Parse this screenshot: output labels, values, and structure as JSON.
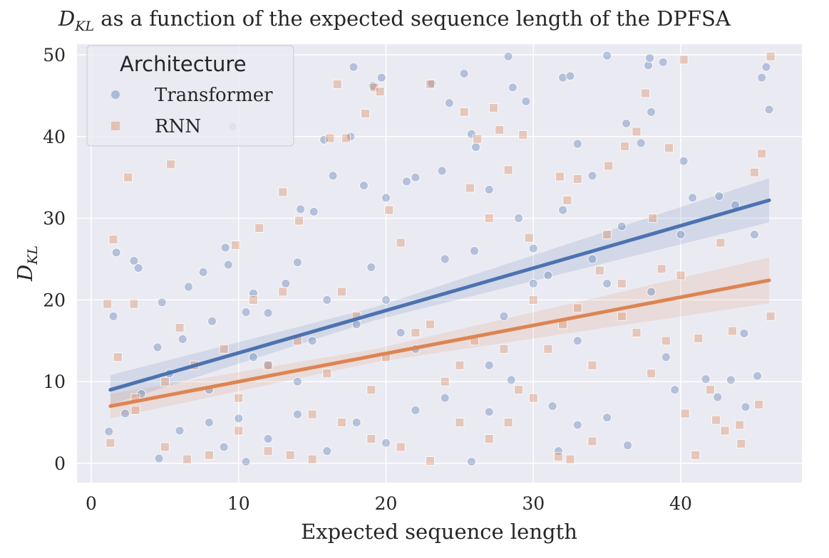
{
  "chart_data": {
    "type": "scatter",
    "title_prefix": "D",
    "title_sub": "KL",
    "title_rest": " as a function of the expected sequence length of the DPFSA",
    "xlabel": "Expected sequence length",
    "ylabel_main": "D",
    "ylabel_sub": "KL",
    "xlim": [
      -1,
      48
    ],
    "ylim": [
      -2.3,
      51.3
    ],
    "xticks": [
      "0",
      "10",
      "20",
      "30",
      "40"
    ],
    "yticks": [
      "0",
      "10",
      "20",
      "30",
      "40",
      "50"
    ],
    "grid": true,
    "legend": {
      "title": "Architecture",
      "placement": "top-left"
    },
    "series": [
      {
        "name": "Transformer",
        "marker": "circle",
        "color": "#4c72b0",
        "regression": {
          "x0": 1.3,
          "y0": 9.0,
          "x1": 46.0,
          "y1": 32.2,
          "ci_start": 1.8,
          "ci_mid": 0.8,
          "ci_end": 2.7
        },
        "points": [
          [
            1.5,
            18
          ],
          [
            1.7,
            25.8
          ],
          [
            2.9,
            24.8
          ],
          [
            3.2,
            23.9
          ],
          [
            3.4,
            8.5
          ],
          [
            4.5,
            14.2
          ],
          [
            4.8,
            19.7
          ],
          [
            5.3,
            11
          ],
          [
            6.2,
            15.2
          ],
          [
            6.6,
            21.6
          ],
          [
            7.6,
            23.4
          ],
          [
            8.2,
            17.4
          ],
          [
            9.1,
            26.4
          ],
          [
            9.3,
            24.3
          ],
          [
            9.6,
            41.2
          ],
          [
            10.5,
            18.5
          ],
          [
            11,
            20.8
          ],
          [
            12,
            18.4
          ],
          [
            13.2,
            22
          ],
          [
            14,
            24.6
          ],
          [
            14.2,
            31.1
          ],
          [
            15.1,
            30.8
          ],
          [
            15.8,
            39.6
          ],
          [
            16.4,
            35.2
          ],
          [
            17.6,
            40
          ],
          [
            17.8,
            48.5
          ],
          [
            18.5,
            34
          ],
          [
            19.1,
            46.2
          ],
          [
            19.7,
            47.2
          ],
          [
            20,
            32.5
          ],
          [
            21.4,
            34.5
          ],
          [
            22,
            35
          ],
          [
            23.1,
            46.5
          ],
          [
            23.8,
            35.8
          ],
          [
            24.3,
            44.1
          ],
          [
            25.3,
            47.7
          ],
          [
            25.8,
            40.3
          ],
          [
            26.1,
            38.7
          ],
          [
            27,
            33.5
          ],
          [
            28.3,
            49.8
          ],
          [
            28.6,
            46
          ],
          [
            29.5,
            44.3
          ],
          [
            30,
            26.3
          ],
          [
            31,
            23
          ],
          [
            32,
            47.2
          ],
          [
            32.5,
            47.4
          ],
          [
            33,
            39.1
          ],
          [
            34,
            35.2
          ],
          [
            35,
            49.9
          ],
          [
            36.3,
            41.6
          ],
          [
            37.3,
            39.2
          ],
          [
            37.8,
            48.7
          ],
          [
            37.9,
            49.6
          ],
          [
            38,
            43
          ],
          [
            38.8,
            49.1
          ],
          [
            40.2,
            37
          ],
          [
            40.8,
            32.5
          ],
          [
            41.7,
            10.3
          ],
          [
            42.6,
            32.7
          ],
          [
            43.4,
            10.2
          ],
          [
            43.7,
            31.6
          ],
          [
            44.3,
            15.9
          ],
          [
            45,
            28
          ],
          [
            45.5,
            47.2
          ],
          [
            45.8,
            48.5
          ],
          [
            46,
            43.3
          ],
          [
            1.2,
            3.9
          ],
          [
            2.3,
            6.1
          ],
          [
            4.6,
            0.6
          ],
          [
            6,
            4
          ],
          [
            8,
            5
          ],
          [
            9,
            2
          ],
          [
            10,
            5.5
          ],
          [
            10.5,
            0.2
          ],
          [
            12,
            3
          ],
          [
            14,
            6
          ],
          [
            16,
            1.5
          ],
          [
            18,
            5
          ],
          [
            20,
            2.5
          ],
          [
            22,
            6.5
          ],
          [
            24,
            8
          ],
          [
            25.8,
            0.2
          ],
          [
            27,
            6.3
          ],
          [
            28.5,
            10.2
          ],
          [
            31.3,
            7
          ],
          [
            31.7,
            1.5
          ],
          [
            33,
            4.7
          ],
          [
            35,
            5.6
          ],
          [
            36.4,
            2.2
          ],
          [
            39.6,
            9
          ],
          [
            42.5,
            8.1
          ],
          [
            44.4,
            6.9
          ],
          [
            45.2,
            10.7
          ],
          [
            12,
            12
          ],
          [
            15,
            15
          ],
          [
            18,
            17
          ],
          [
            20,
            20
          ],
          [
            22,
            14
          ],
          [
            26,
            26
          ],
          [
            28,
            18
          ],
          [
            30,
            22
          ],
          [
            32,
            31
          ],
          [
            34,
            25
          ],
          [
            36,
            29
          ],
          [
            38,
            21
          ],
          [
            40,
            28
          ],
          [
            8,
            9
          ],
          [
            11,
            13
          ],
          [
            14,
            10
          ],
          [
            16,
            20
          ],
          [
            19,
            24
          ],
          [
            21,
            16
          ],
          [
            24,
            25
          ],
          [
            27,
            12
          ],
          [
            29,
            30
          ],
          [
            33,
            15
          ],
          [
            35,
            22
          ],
          [
            39,
            13
          ]
        ]
      },
      {
        "name": "RNN",
        "marker": "square",
        "color": "#dd8452",
        "regression": {
          "x0": 1.3,
          "y0": 7.0,
          "x1": 46.0,
          "y1": 22.4,
          "ci_start": 1.5,
          "ci_mid": 0.8,
          "ci_end": 2.8
        },
        "points": [
          [
            1.1,
            19.5
          ],
          [
            1.5,
            27.4
          ],
          [
            1.8,
            13
          ],
          [
            2.5,
            35
          ],
          [
            2.9,
            19.5
          ],
          [
            5.4,
            36.6
          ],
          [
            6,
            16.6
          ],
          [
            9.8,
            26.7
          ],
          [
            11.4,
            28.8
          ],
          [
            13,
            33.2
          ],
          [
            14.1,
            29.7
          ],
          [
            16.2,
            39.8
          ],
          [
            16.7,
            46.4
          ],
          [
            17.3,
            39.8
          ],
          [
            18.6,
            42.8
          ],
          [
            19.2,
            46
          ],
          [
            19.6,
            45.5
          ],
          [
            20.2,
            31
          ],
          [
            23,
            46.4
          ],
          [
            25.3,
            43
          ],
          [
            25.7,
            33.7
          ],
          [
            26.2,
            39.7
          ],
          [
            27.3,
            43.5
          ],
          [
            27.7,
            40.8
          ],
          [
            28.3,
            35.9
          ],
          [
            29.3,
            40.2
          ],
          [
            29.7,
            27.6
          ],
          [
            31.8,
            35.1
          ],
          [
            32.3,
            32.2
          ],
          [
            33,
            34.8
          ],
          [
            35.1,
            36.4
          ],
          [
            36.2,
            38.8
          ],
          [
            37,
            40.6
          ],
          [
            37.6,
            45.3
          ],
          [
            38.1,
            30
          ],
          [
            39.2,
            38.6
          ],
          [
            40.2,
            49.4
          ],
          [
            41.2,
            15.3
          ],
          [
            42.7,
            27
          ],
          [
            43.5,
            16.2
          ],
          [
            45,
            35.6
          ],
          [
            45.5,
            37.9
          ],
          [
            46.1,
            49.8
          ],
          [
            46.1,
            18
          ],
          [
            45.3,
            7.2
          ],
          [
            44.1,
            2.4
          ],
          [
            42.4,
            5.3
          ],
          [
            41,
            1
          ],
          [
            40.3,
            6.1
          ],
          [
            38.7,
            23.8
          ],
          [
            36,
            18
          ],
          [
            34.5,
            23.6
          ],
          [
            34,
            2.7
          ],
          [
            32.5,
            0.5
          ],
          [
            31.7,
            0.8
          ],
          [
            30,
            8
          ],
          [
            28.3,
            5
          ],
          [
            27,
            3
          ],
          [
            25,
            5
          ],
          [
            23,
            0.3
          ],
          [
            21,
            2
          ],
          [
            19,
            3
          ],
          [
            17,
            5
          ],
          [
            15,
            0.5
          ],
          [
            13.5,
            1
          ],
          [
            12,
            1.5
          ],
          [
            10,
            4
          ],
          [
            8,
            1
          ],
          [
            6.5,
            0.5
          ],
          [
            5,
            2
          ],
          [
            3,
            6.5
          ],
          [
            1.3,
            2.5
          ],
          [
            3,
            8
          ],
          [
            5,
            10
          ],
          [
            7,
            12
          ],
          [
            9,
            14
          ],
          [
            10,
            8
          ],
          [
            12,
            12
          ],
          [
            14,
            15
          ],
          [
            16,
            11
          ],
          [
            18,
            18
          ],
          [
            20,
            13
          ],
          [
            22,
            16
          ],
          [
            24,
            10
          ],
          [
            26,
            15
          ],
          [
            28,
            14
          ],
          [
            30,
            20
          ],
          [
            32,
            17
          ],
          [
            34,
            12
          ],
          [
            36,
            22
          ],
          [
            38,
            11
          ],
          [
            40,
            23
          ],
          [
            42,
            9
          ],
          [
            11,
            20
          ],
          [
            13,
            21
          ],
          [
            15,
            6
          ],
          [
            17,
            21
          ],
          [
            19,
            9
          ],
          [
            21,
            27
          ],
          [
            23,
            17
          ],
          [
            25,
            12
          ],
          [
            27,
            30
          ],
          [
            29,
            9
          ],
          [
            31,
            14
          ],
          [
            33,
            19
          ],
          [
            35,
            28
          ],
          [
            37,
            16
          ],
          [
            39,
            15
          ],
          [
            43,
            4
          ],
          [
            44,
            4.7
          ]
        ]
      }
    ]
  }
}
